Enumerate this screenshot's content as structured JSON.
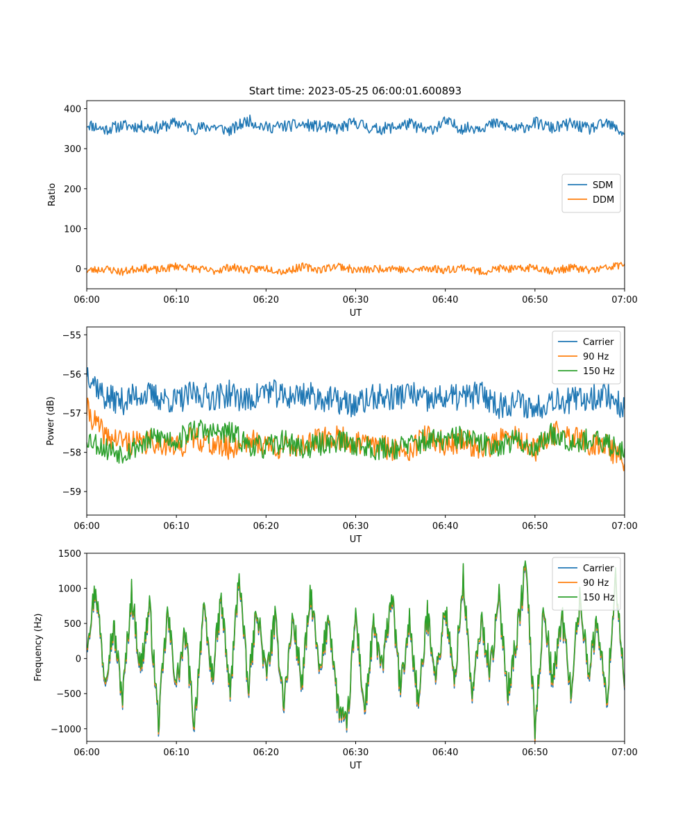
{
  "title": "Start time: 2023-05-25 06:00:01.600893",
  "colors": {
    "blue": "#1f77b4",
    "orange": "#ff7f0e",
    "green": "#2ca02c"
  },
  "chart_data": [
    {
      "type": "line",
      "xlabel": "UT",
      "ylabel": "Ratio",
      "xlim": [
        "06:00",
        "07:00"
      ],
      "ylim": [
        -50,
        420
      ],
      "x_ticks": [
        "06:00",
        "06:10",
        "06:20",
        "06:30",
        "06:40",
        "06:50",
        "07:00"
      ],
      "y_ticks": [
        0,
        100,
        200,
        300,
        400
      ],
      "y_tick_labels": [
        "0",
        "100",
        "200",
        "300",
        "400"
      ],
      "legend_position": "center-right",
      "grid": false,
      "x_minutes": [
        0,
        2,
        4,
        6,
        8,
        10,
        12,
        14,
        16,
        18,
        20,
        22,
        24,
        26,
        28,
        30,
        32,
        34,
        36,
        38,
        40,
        42,
        44,
        46,
        48,
        50,
        52,
        54,
        56,
        58,
        60
      ],
      "series": [
        {
          "name": "SDM",
          "color": "#1f77b4",
          "values": [
            362,
            348,
            358,
            355,
            352,
            365,
            350,
            356,
            345,
            371,
            353,
            356,
            360,
            355,
            350,
            366,
            348,
            353,
            362,
            344,
            367,
            350,
            355,
            363,
            347,
            365,
            351,
            362,
            349,
            363,
            338
          ]
        },
        {
          "name": "DDM",
          "color": "#ff7f0e",
          "values": [
            -5,
            0,
            -8,
            3,
            -4,
            7,
            1,
            -6,
            4,
            -3,
            2,
            -7,
            5,
            -2,
            8,
            -4,
            -1,
            3,
            -6,
            2,
            -3,
            4,
            -8,
            1,
            -2,
            5,
            -6,
            3,
            -4,
            2,
            12
          ]
        }
      ]
    },
    {
      "type": "line",
      "xlabel": "UT",
      "ylabel": "Power (dB)",
      "xlim": [
        "06:00",
        "07:00"
      ],
      "ylim": [
        -59.6,
        -54.8
      ],
      "x_ticks": [
        "06:00",
        "06:10",
        "06:20",
        "06:30",
        "06:40",
        "06:50",
        "07:00"
      ],
      "y_ticks": [
        -59,
        -58,
        -57,
        -56,
        -55
      ],
      "y_tick_labels": [
        "−59",
        "−58",
        "−57",
        "−56",
        "−55"
      ],
      "legend_position": "top-right",
      "grid": false,
      "x_minutes": [
        0,
        2,
        4,
        6,
        8,
        10,
        12,
        14,
        16,
        18,
        20,
        22,
        24,
        26,
        28,
        30,
        32,
        34,
        36,
        38,
        40,
        42,
        44,
        46,
        48,
        50,
        52,
        54,
        56,
        58,
        60
      ],
      "series": [
        {
          "name": "Carrier",
          "color": "#1f77b4",
          "values": [
            -55.9,
            -56.6,
            -56.7,
            -56.5,
            -56.6,
            -56.7,
            -56.5,
            -56.6,
            -56.5,
            -56.7,
            -56.4,
            -56.6,
            -56.5,
            -56.6,
            -56.7,
            -56.8,
            -56.6,
            -56.6,
            -56.5,
            -56.7,
            -56.6,
            -56.6,
            -56.5,
            -56.8,
            -56.7,
            -56.9,
            -56.6,
            -56.7,
            -56.6,
            -56.5,
            -56.9
          ]
        },
        {
          "name": "90 Hz",
          "color": "#ff7f0e",
          "values": [
            -56.9,
            -57.6,
            -57.7,
            -57.8,
            -57.7,
            -57.9,
            -57.6,
            -57.8,
            -57.9,
            -57.7,
            -57.8,
            -57.9,
            -57.8,
            -57.7,
            -57.6,
            -57.8,
            -57.8,
            -57.9,
            -57.9,
            -57.6,
            -57.8,
            -57.7,
            -57.9,
            -57.7,
            -57.6,
            -58.0,
            -57.5,
            -57.6,
            -57.8,
            -57.8,
            -58.3
          ]
        },
        {
          "name": "150 Hz",
          "color": "#2ca02c",
          "values": [
            -57.6,
            -57.9,
            -58.0,
            -57.8,
            -57.6,
            -57.7,
            -57.4,
            -57.5,
            -57.5,
            -57.8,
            -57.9,
            -57.7,
            -57.9,
            -57.8,
            -57.7,
            -57.8,
            -57.9,
            -57.9,
            -57.8,
            -57.7,
            -57.7,
            -57.6,
            -57.8,
            -57.8,
            -57.7,
            -57.9,
            -57.5,
            -57.7,
            -57.7,
            -57.8,
            -57.9
          ]
        }
      ]
    },
    {
      "type": "line",
      "xlabel": "UT",
      "ylabel": "Frequency (Hz)",
      "xlim": [
        "06:00",
        "07:00"
      ],
      "ylim": [
        -1180,
        1500
      ],
      "x_ticks": [
        "06:00",
        "06:10",
        "06:20",
        "06:30",
        "06:40",
        "06:50",
        "07:00"
      ],
      "y_ticks": [
        -1000,
        -500,
        0,
        500,
        1000,
        1500
      ],
      "y_tick_labels": [
        "−1000",
        "−500",
        "0",
        "500",
        "1000",
        "1500"
      ],
      "legend_position": "top-right",
      "grid": false,
      "x_minutes": [
        0,
        1,
        2,
        3,
        4,
        5,
        6,
        7,
        8,
        9,
        10,
        11,
        12,
        13,
        14,
        15,
        16,
        17,
        18,
        19,
        20,
        21,
        22,
        23,
        24,
        25,
        26,
        27,
        28,
        29,
        30,
        31,
        32,
        33,
        34,
        35,
        36,
        37,
        38,
        39,
        40,
        41,
        42,
        43,
        44,
        45,
        46,
        47,
        48,
        49,
        50,
        51,
        52,
        53,
        54,
        55,
        56,
        57,
        58,
        59,
        60
      ],
      "series": [
        {
          "name": "Carrier",
          "color": "#1f77b4",
          "values": [
            200,
            1000,
            -300,
            400,
            -600,
            900,
            -200,
            700,
            -950,
            600,
            -400,
            300,
            -970,
            650,
            -300,
            800,
            -550,
            1200,
            -500,
            700,
            -300,
            500,
            -650,
            550,
            -400,
            900,
            -300,
            600,
            -700,
            -1050,
            600,
            -800,
            400,
            -200,
            900,
            -500,
            500,
            -700,
            600,
            -300,
            700,
            -400,
            1100,
            -600,
            500,
            -200,
            800,
            -500,
            300,
            1300,
            -1050,
            700,
            -400,
            600,
            -500,
            800,
            -200,
            500,
            -700,
            1150,
            -450
          ]
        },
        {
          "name": "90 Hz",
          "color": "#ff7f0e",
          "values": [
            230,
            1020,
            -270,
            430,
            -570,
            930,
            -170,
            730,
            -920,
            630,
            -370,
            330,
            -940,
            680,
            -270,
            830,
            -520,
            1230,
            -470,
            730,
            -270,
            530,
            -620,
            580,
            -370,
            930,
            -270,
            630,
            -670,
            -1020,
            630,
            -770,
            430,
            -170,
            930,
            -470,
            530,
            -670,
            630,
            -270,
            730,
            -370,
            1130,
            -570,
            530,
            -170,
            830,
            -470,
            330,
            1330,
            -1020,
            730,
            -370,
            630,
            -470,
            830,
            -170,
            530,
            -670,
            1180,
            -420
          ]
        },
        {
          "name": "150 Hz",
          "color": "#2ca02c",
          "values": [
            260,
            1040,
            -240,
            460,
            -540,
            960,
            -140,
            760,
            -890,
            660,
            -340,
            360,
            -910,
            710,
            -240,
            860,
            -490,
            1260,
            -440,
            760,
            -240,
            560,
            -590,
            610,
            -340,
            960,
            -240,
            660,
            -640,
            -990,
            660,
            -740,
            460,
            -140,
            960,
            -440,
            560,
            -640,
            660,
            -240,
            760,
            -340,
            1160,
            -540,
            560,
            -140,
            860,
            -440,
            360,
            1380,
            -990,
            760,
            -340,
            660,
            -440,
            860,
            -140,
            560,
            -640,
            1200,
            -390
          ]
        }
      ]
    }
  ]
}
